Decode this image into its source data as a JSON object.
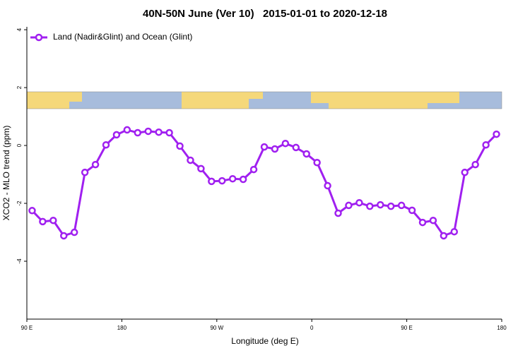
{
  "chart_data": {
    "type": "line",
    "title": "40N-50N June (Ver 10)   2015-01-01 to 2020-12-18",
    "x_label": "Longitude (deg E)",
    "y_label": "XCO2 - MLO trend (ppm)",
    "x": [
      95,
      105,
      115,
      125,
      135,
      145,
      155,
      165,
      175,
      185,
      195,
      205,
      215,
      225,
      235,
      245,
      255,
      265,
      275,
      285,
      295,
      305,
      315,
      325,
      335,
      345,
      355,
      365,
      375,
      385,
      395,
      405,
      415,
      425,
      435,
      445,
      455,
      465,
      475,
      485,
      495,
      505,
      515,
      525,
      535
    ],
    "series": [
      {
        "name": "Land (Nadir&Glint) and Ocean (Glint)",
        "color": "#a020f0",
        "values": [
          -2.25,
          -2.63,
          -2.59,
          -3.12,
          -3.0,
          -0.93,
          -0.66,
          0.02,
          0.37,
          0.54,
          0.44,
          0.49,
          0.46,
          0.44,
          -0.02,
          -0.51,
          -0.8,
          -1.24,
          -1.22,
          -1.15,
          -1.17,
          -0.83,
          -0.05,
          -0.12,
          0.07,
          -0.07,
          -0.29,
          -0.59,
          -1.39,
          -2.34,
          -2.07,
          -1.98,
          -2.1,
          -2.05,
          -2.1,
          -2.07,
          -2.24,
          -2.66,
          -2.59,
          -3.12,
          -2.98,
          -0.93,
          -0.66,
          0.02,
          0.39
        ]
      }
    ],
    "xlim": [
      90,
      540
    ],
    "xticks": [
      {
        "value": 90,
        "label": "90 E"
      },
      180,
      {
        "value": 270,
        "label": "90 W"
      },
      {
        "value": 360,
        "label": "0"
      },
      {
        "value": 450,
        "label": "90 E"
      },
      {
        "value": 540,
        "label": "180"
      }
    ],
    "ylim": [
      -6,
      4.1
    ],
    "yticks": [
      -4,
      -2,
      0,
      2,
      4
    ],
    "legend": "top-left"
  }
}
